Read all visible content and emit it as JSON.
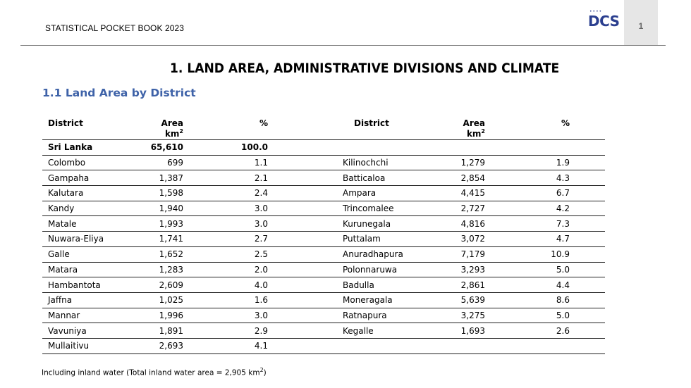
{
  "header": {
    "title": "STATISTICAL POCKET BOOK 2023",
    "logo_text": "DCS",
    "page_number": "1"
  },
  "chapter_title": "1.  LAND AREA, ADMINISTRATIVE DIVISIONS AND CLIMATE",
  "section_title": "1.1 Land Area by District",
  "table": {
    "headers": {
      "district": "District",
      "area": "Area",
      "area_unit": "km",
      "area_unit_sup": "2",
      "percent": "%"
    },
    "left_rows": [
      {
        "district": "Sri Lanka",
        "area": "65,610",
        "percent": "100.0"
      },
      {
        "district": "Colombo",
        "area": "699",
        "percent": "1.1"
      },
      {
        "district": "Gampaha",
        "area": "1,387",
        "percent": "2.1"
      },
      {
        "district": "Kalutara",
        "area": "1,598",
        "percent": "2.4"
      },
      {
        "district": "Kandy",
        "area": "1,940",
        "percent": "3.0"
      },
      {
        "district": "Matale",
        "area": "1,993",
        "percent": "3.0"
      },
      {
        "district": "Nuwara-Eliya",
        "area": "1,741",
        "percent": "2.7"
      },
      {
        "district": "Galle",
        "area": "1,652",
        "percent": "2.5"
      },
      {
        "district": "Matara",
        "area": "1,283",
        "percent": "2.0"
      },
      {
        "district": "Hambantota",
        "area": "2,609",
        "percent": "4.0"
      },
      {
        "district": "Jaffna",
        "area": "1,025",
        "percent": "1.6"
      },
      {
        "district": "Mannar",
        "area": "1,996",
        "percent": "3.0"
      },
      {
        "district": "Vavuniya",
        "area": "1,891",
        "percent": "2.9"
      },
      {
        "district": "Mullaitivu",
        "area": "2,693",
        "percent": "4.1"
      }
    ],
    "right_rows": [
      {
        "district": "",
        "area": "",
        "percent": ""
      },
      {
        "district": "Kilinochchi",
        "area": "1,279",
        "percent": "1.9"
      },
      {
        "district": "Batticaloa",
        "area": "2,854",
        "percent": "4.3"
      },
      {
        "district": "Ampara",
        "area": "4,415",
        "percent": "6.7"
      },
      {
        "district": "Trincomalee",
        "area": "2,727",
        "percent": "4.2"
      },
      {
        "district": "Kurunegala",
        "area": "4,816",
        "percent": "7.3"
      },
      {
        "district": "Puttalam",
        "area": "3,072",
        "percent": "4.7"
      },
      {
        "district": "Anuradhapura",
        "area": "7,179",
        "percent": "10.9"
      },
      {
        "district": "Polonnaruwa",
        "area": "3,293",
        "percent": "5.0"
      },
      {
        "district": "Badulla",
        "area": "2,861",
        "percent": "4.4"
      },
      {
        "district": "Moneragala",
        "area": "5,639",
        "percent": "8.6"
      },
      {
        "district": "Ratnapura",
        "area": "3,275",
        "percent": "5.0"
      },
      {
        "district": "Kegalle",
        "area": "1,693",
        "percent": "2.6"
      },
      {
        "district": "",
        "area": "",
        "percent": ""
      }
    ]
  },
  "footnote": {
    "text": "Including inland water (Total inland water area = 2,905 km",
    "sup": "2",
    "close": ")"
  }
}
